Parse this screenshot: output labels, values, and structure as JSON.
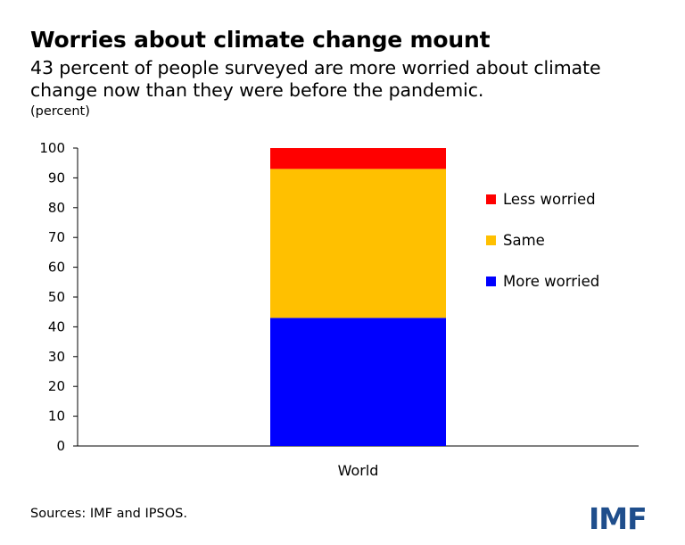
{
  "header": {
    "title": "Worries about climate change mount",
    "subtitle": "43 percent of people surveyed are more worried about climate change now than they were before the pandemic.",
    "unit": "(percent)"
  },
  "footer": {
    "source": "Sources: IMF and IPSOS.",
    "logo_text": "IMF",
    "logo_color": "#1f4e8c"
  },
  "chart_data": {
    "type": "bar",
    "stacked": true,
    "categories": [
      "World"
    ],
    "series": [
      {
        "name": "More worried",
        "values": [
          43
        ],
        "color": "#0000ff"
      },
      {
        "name": "Same",
        "values": [
          50
        ],
        "color": "#ffc000"
      },
      {
        "name": "Less worried",
        "values": [
          7
        ],
        "color": "#ff0000"
      }
    ],
    "ylim": [
      0,
      100
    ],
    "yticks": [
      0,
      10,
      20,
      30,
      40,
      50,
      60,
      70,
      80,
      90,
      100
    ],
    "legend_position": "right",
    "legend_order": [
      "Less worried",
      "Same",
      "More worried"
    ],
    "grid": false
  }
}
